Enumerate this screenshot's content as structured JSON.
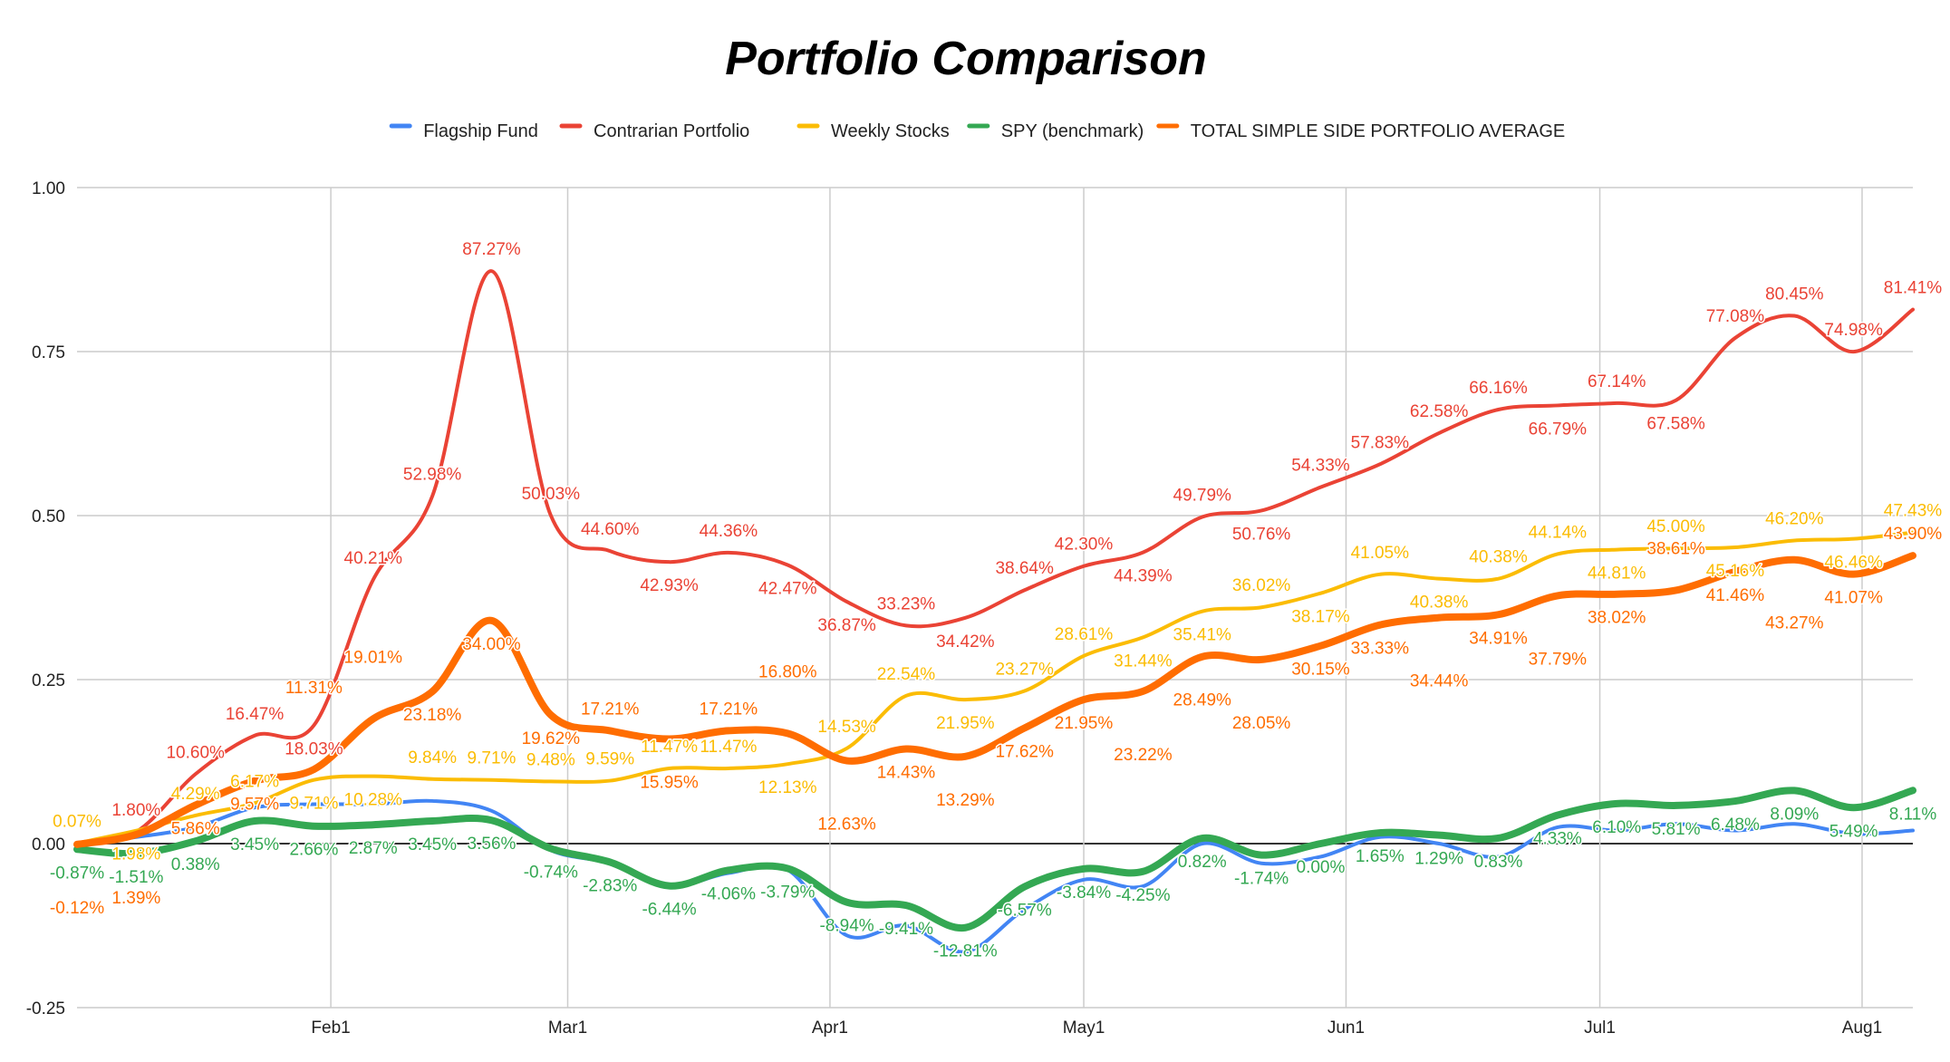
{
  "chart_data": {
    "type": "line",
    "title": "Portfolio Comparison",
    "xlabel": "",
    "ylabel": "",
    "ylim": [
      -0.25,
      1.0
    ],
    "yticks": [
      -0.25,
      0.0,
      0.25,
      0.5,
      0.75,
      1.0
    ],
    "ytick_labels": [
      "-0.25",
      "0.00",
      "0.25",
      "0.50",
      "0.75",
      "1.00"
    ],
    "x_unit": "day of year (weekly points)",
    "x": [
      2,
      9,
      16,
      23,
      30,
      37,
      44,
      51,
      58,
      65,
      72,
      79,
      86,
      93,
      100,
      107,
      114,
      121,
      128,
      135,
      142,
      149,
      156,
      163,
      170,
      177,
      184,
      191,
      198,
      205,
      212,
      219
    ],
    "xlim": [
      2,
      219
    ],
    "xticks": [
      32,
      60,
      91,
      121,
      152,
      182,
      213
    ],
    "xtick_labels": [
      "Feb1",
      "Mar1",
      "Apr1",
      "May1",
      "Jun1",
      "Jul1",
      "Aug1"
    ],
    "grid": true,
    "legend_position": "top",
    "series": [
      {
        "name": "Flagship Fund",
        "color": "#4285F4",
        "show_labels": false,
        "label_side": "below",
        "values": [
          0,
          0.01,
          0.025,
          0.055,
          0.06,
          0.06,
          0.065,
          0.05,
          -0.01,
          -0.03,
          -0.065,
          -0.045,
          -0.04,
          -0.14,
          -0.125,
          -0.165,
          -0.1,
          -0.055,
          -0.065,
          0.0,
          -0.03,
          -0.02,
          0.01,
          0.0,
          -0.02,
          0.025,
          0.02,
          0.03,
          0.02,
          0.03,
          0.015,
          0.02
        ]
      },
      {
        "name": "Contrarian Portfolio",
        "color": "#EA4335",
        "show_labels": true,
        "label_side": "above",
        "values": [
          0.0,
          0.018,
          0.106,
          0.1647,
          0.1803,
          0.4021,
          0.5298,
          0.8727,
          0.5003,
          0.446,
          0.4293,
          0.4436,
          0.4247,
          0.3687,
          0.3323,
          0.3442,
          0.3864,
          0.423,
          0.4439,
          0.4979,
          0.5076,
          0.5433,
          0.5783,
          0.6258,
          0.6616,
          0.6679,
          0.6714,
          0.6758,
          0.7708,
          0.8045,
          0.7498,
          0.8141
        ],
        "labels": [
          "",
          "1.80%",
          "10.60%",
          "16.47%",
          "18.03%",
          "40.21%",
          "52.98%",
          "87.27%",
          "50.03%",
          "44.60%",
          "42.93%",
          "44.36%",
          "42.47%",
          "36.87%",
          "33.23%",
          "34.42%",
          "38.64%",
          "42.30%",
          "44.39%",
          "49.79%",
          "50.76%",
          "54.33%",
          "57.83%",
          "62.58%",
          "66.16%",
          "66.79%",
          "67.14%",
          "67.58%",
          "77.08%",
          "80.45%",
          "74.98%",
          "81.41%"
        ]
      },
      {
        "name": "Weekly Stocks",
        "color": "#FBBC04",
        "show_labels": true,
        "label_side": "above",
        "values": [
          0.0007,
          0.0198,
          0.0429,
          0.0617,
          0.0971,
          0.1028,
          0.0984,
          0.0971,
          0.0948,
          0.0959,
          0.1147,
          0.1147,
          0.1213,
          0.1453,
          0.2254,
          0.2195,
          0.2327,
          0.2861,
          0.3144,
          0.3541,
          0.3602,
          0.3817,
          0.4105,
          0.4038,
          0.4038,
          0.4414,
          0.4481,
          0.45,
          0.4516,
          0.462,
          0.4646,
          0.4743
        ],
        "labels": [
          "0.07%",
          "1.98%",
          "4.29%",
          "6.17%",
          "9.71%",
          "10.28%",
          "9.84%",
          "9.71%",
          "9.48%",
          "9.59%",
          "11.47%",
          "11.47%",
          "12.13%",
          "14.53%",
          "22.54%",
          "21.95%",
          "23.27%",
          "28.61%",
          "31.44%",
          "35.41%",
          "36.02%",
          "38.17%",
          "41.05%",
          "40.38%",
          "40.38%",
          "44.14%",
          "44.81%",
          "45.00%",
          "45.16%",
          "46.20%",
          "46.46%",
          "47.43%"
        ]
      },
      {
        "name": "SPY (benchmark)",
        "color": "#34A853",
        "show_labels": true,
        "label_side": "below",
        "thick": true,
        "values": [
          -0.0087,
          -0.0151,
          0.0038,
          0.0345,
          0.0266,
          0.0287,
          0.0345,
          0.0356,
          -0.0074,
          -0.0283,
          -0.0644,
          -0.0406,
          -0.0379,
          -0.0894,
          -0.0941,
          -0.1281,
          -0.0657,
          -0.0384,
          -0.0425,
          0.0082,
          -0.0174,
          0.0,
          0.0165,
          0.0129,
          0.0083,
          0.0433,
          0.061,
          0.0581,
          0.0648,
          0.0809,
          0.0549,
          0.0811
        ],
        "labels": [
          "-0.87%",
          "-1.51%",
          "0.38%",
          "3.45%",
          "2.66%",
          "2.87%",
          "3.45%",
          "3.56%",
          "-0.74%",
          "-2.83%",
          "-6.44%",
          "-4.06%",
          "-3.79%",
          "-8.94%",
          "-9.41%",
          "-12.81%",
          "-6.57%",
          "-3.84%",
          "-4.25%",
          "0.82%",
          "-1.74%",
          "0.00%",
          "1.65%",
          "1.29%",
          "0.83%",
          "4.33%",
          "6.10%",
          "5.81%",
          "6.48%",
          "8.09%",
          "5.49%",
          "8.11%"
        ]
      },
      {
        "name": "TOTAL SIMPLE SIDE PORTFOLIO AVERAGE",
        "color": "#FF6D01",
        "show_labels": true,
        "label_side": "below",
        "thick": true,
        "values": [
          -0.0012,
          0.0139,
          0.0586,
          0.0957,
          0.1131,
          0.1901,
          0.2318,
          0.34,
          0.1962,
          0.1721,
          0.1595,
          0.1721,
          0.168,
          0.1263,
          0.1443,
          0.1329,
          0.1762,
          0.2195,
          0.2322,
          0.2849,
          0.2805,
          0.3015,
          0.3333,
          0.3444,
          0.3491,
          0.3779,
          0.3802,
          0.3861,
          0.4146,
          0.4327,
          0.4107,
          0.439
        ],
        "labels": [
          "-0.12%",
          "1.39%",
          "5.86%",
          "9.57%",
          "11.31%",
          "19.01%",
          "23.18%",
          "34.00%",
          "19.62%",
          "17.21%",
          "15.95%",
          "17.21%",
          "16.80%",
          "12.63%",
          "14.43%",
          "13.29%",
          "17.62%",
          "21.95%",
          "23.22%",
          "28.49%",
          "28.05%",
          "30.15%",
          "33.33%",
          "34.44%",
          "34.91%",
          "37.79%",
          "38.02%",
          "38.61%",
          "41.46%",
          "43.27%",
          "41.07%",
          "43.90%"
        ]
      }
    ]
  }
}
